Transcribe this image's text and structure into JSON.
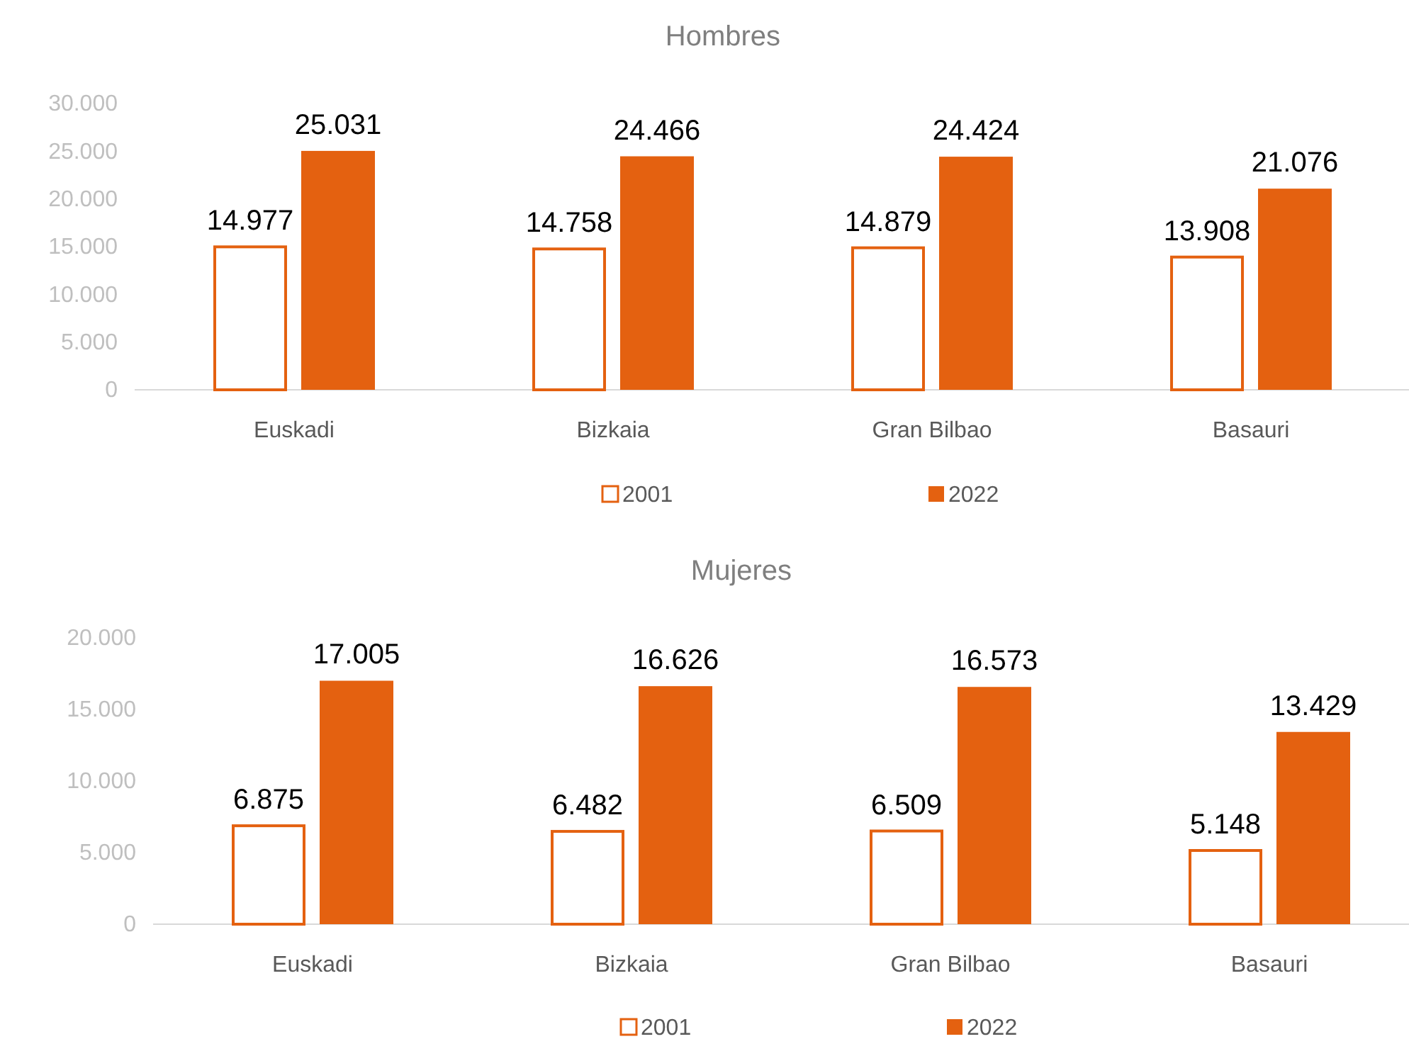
{
  "chart_data": [
    {
      "type": "bar",
      "title": "Hombres",
      "categories": [
        "Euskadi",
        "Bizkaia",
        "Gran Bilbao",
        "Basauri"
      ],
      "series": [
        {
          "name": "2001",
          "color": "#ffffff",
          "values": [
            14977,
            14758,
            14879,
            13908
          ],
          "value_labels": [
            "14.977",
            "14.758",
            "14.879",
            "13.908"
          ]
        },
        {
          "name": "2022",
          "color": "#e46110",
          "values": [
            25031,
            24466,
            24424,
            21076
          ],
          "value_labels": [
            "25.031",
            "24.466",
            "24.424",
            "21.076"
          ]
        }
      ],
      "ylim": [
        0,
        30000
      ],
      "yticks": [
        {
          "value": 0,
          "label": "0"
        },
        {
          "value": 5000,
          "label": "5.000"
        },
        {
          "value": 10000,
          "label": "10.000"
        },
        {
          "value": 15000,
          "label": "15.000"
        },
        {
          "value": 20000,
          "label": "20.000"
        },
        {
          "value": 25000,
          "label": "25.000"
        },
        {
          "value": 30000,
          "label": "30.000"
        }
      ],
      "grid": false,
      "legend": "bottom"
    },
    {
      "type": "bar",
      "title": "Mujeres",
      "categories": [
        "Euskadi",
        "Bizkaia",
        "Gran Bilbao",
        "Basauri"
      ],
      "series": [
        {
          "name": "2001",
          "color": "#ffffff",
          "values": [
            6875,
            6482,
            6509,
            5148
          ],
          "value_labels": [
            "6.875",
            "6.482",
            "6.509",
            "5.148"
          ]
        },
        {
          "name": "2022",
          "color": "#e46110",
          "values": [
            17005,
            16626,
            16573,
            13429
          ],
          "value_labels": [
            "17.005",
            "16.626",
            "16.573",
            "13.429"
          ]
        }
      ],
      "ylim": [
        0,
        20000
      ],
      "yticks": [
        {
          "value": 0,
          "label": "0"
        },
        {
          "value": 5000,
          "label": "5.000"
        },
        {
          "value": 10000,
          "label": "10.000"
        },
        {
          "value": 15000,
          "label": "15.000"
        },
        {
          "value": 20000,
          "label": "20.000"
        }
      ],
      "grid": false,
      "legend": "bottom"
    }
  ]
}
